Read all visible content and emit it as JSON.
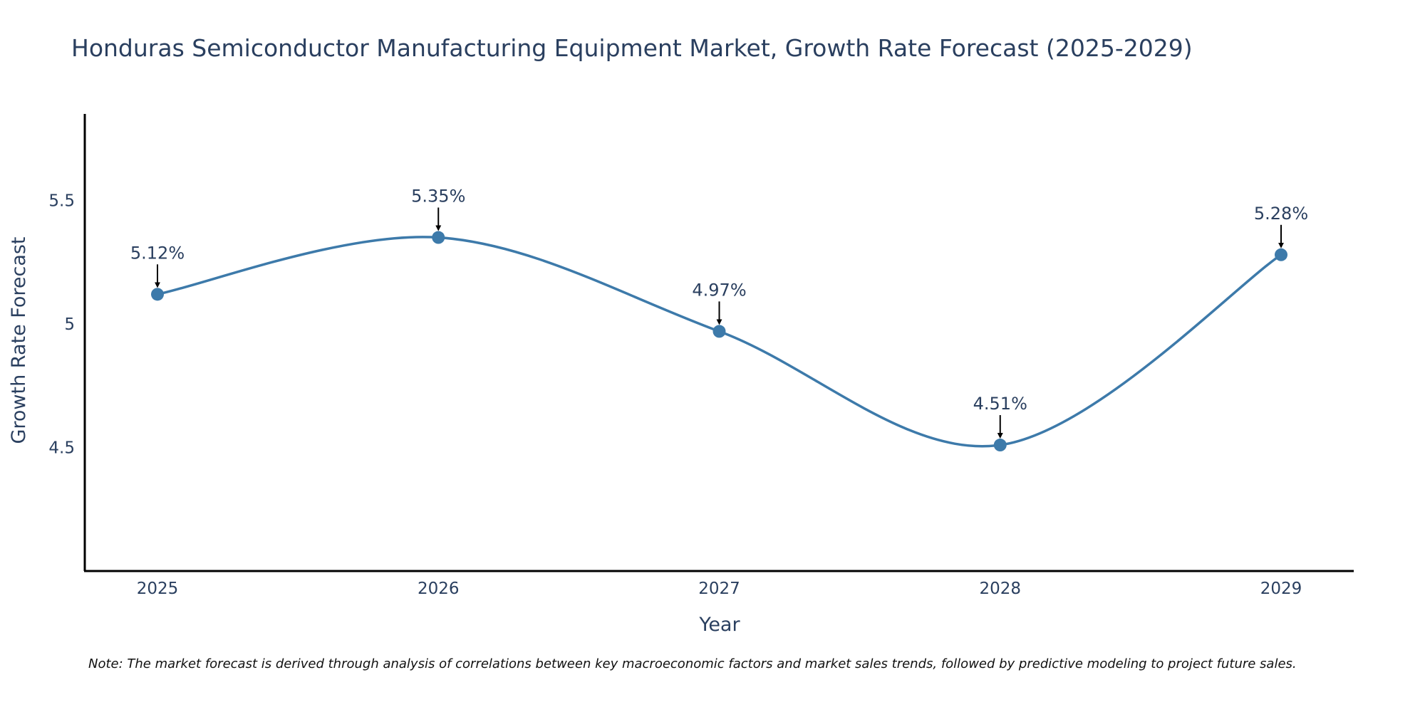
{
  "chart_data": {
    "type": "line",
    "title": "Honduras Semiconductor Manufacturing Equipment Market, Growth Rate Forecast (2025-2029)",
    "xlabel": "Year",
    "ylabel": "Growth Rate Forecast",
    "categories": [
      "2025",
      "2026",
      "2027",
      "2028",
      "2029"
    ],
    "values": [
      5.12,
      5.35,
      4.97,
      4.51,
      5.28
    ],
    "point_labels": [
      "5.12%",
      "5.35%",
      "4.97%",
      "4.51%",
      "5.28%"
    ],
    "ylim": [
      4.0,
      5.85
    ],
    "yticks": [
      4.5,
      5,
      5.5
    ],
    "ytick_labels": [
      "4.5",
      "5",
      "5.5"
    ],
    "line_shape": "spline",
    "grid": false,
    "line_color": "#3d7aaa",
    "marker_color": "#3d7aaa",
    "arrow_color": "#000000"
  },
  "note": "Note: The market forecast is derived through analysis of correlations between key macroeconomic factors and market sales trends, followed by predictive modeling to project future sales."
}
